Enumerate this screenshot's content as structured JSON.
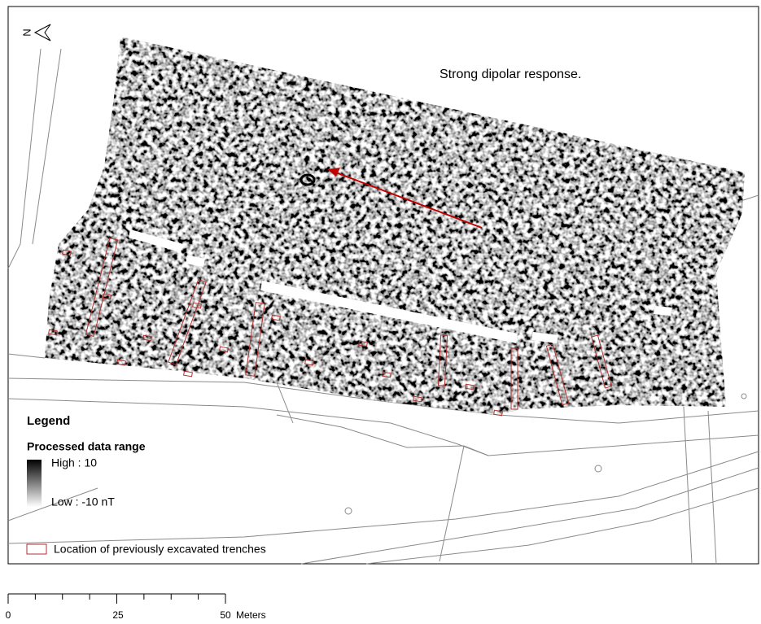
{
  "north_arrow": {
    "label": "N"
  },
  "annotation": {
    "text": "Strong dipolar response."
  },
  "legend": {
    "title": "Legend",
    "range_title": "Processed data range",
    "high": "High : 10",
    "low": "Low : -10 nT",
    "trenches": "Location of previously excavated trenches"
  },
  "scale_bar": {
    "labels": [
      "0",
      "25",
      "50"
    ],
    "unit": "Meters"
  }
}
